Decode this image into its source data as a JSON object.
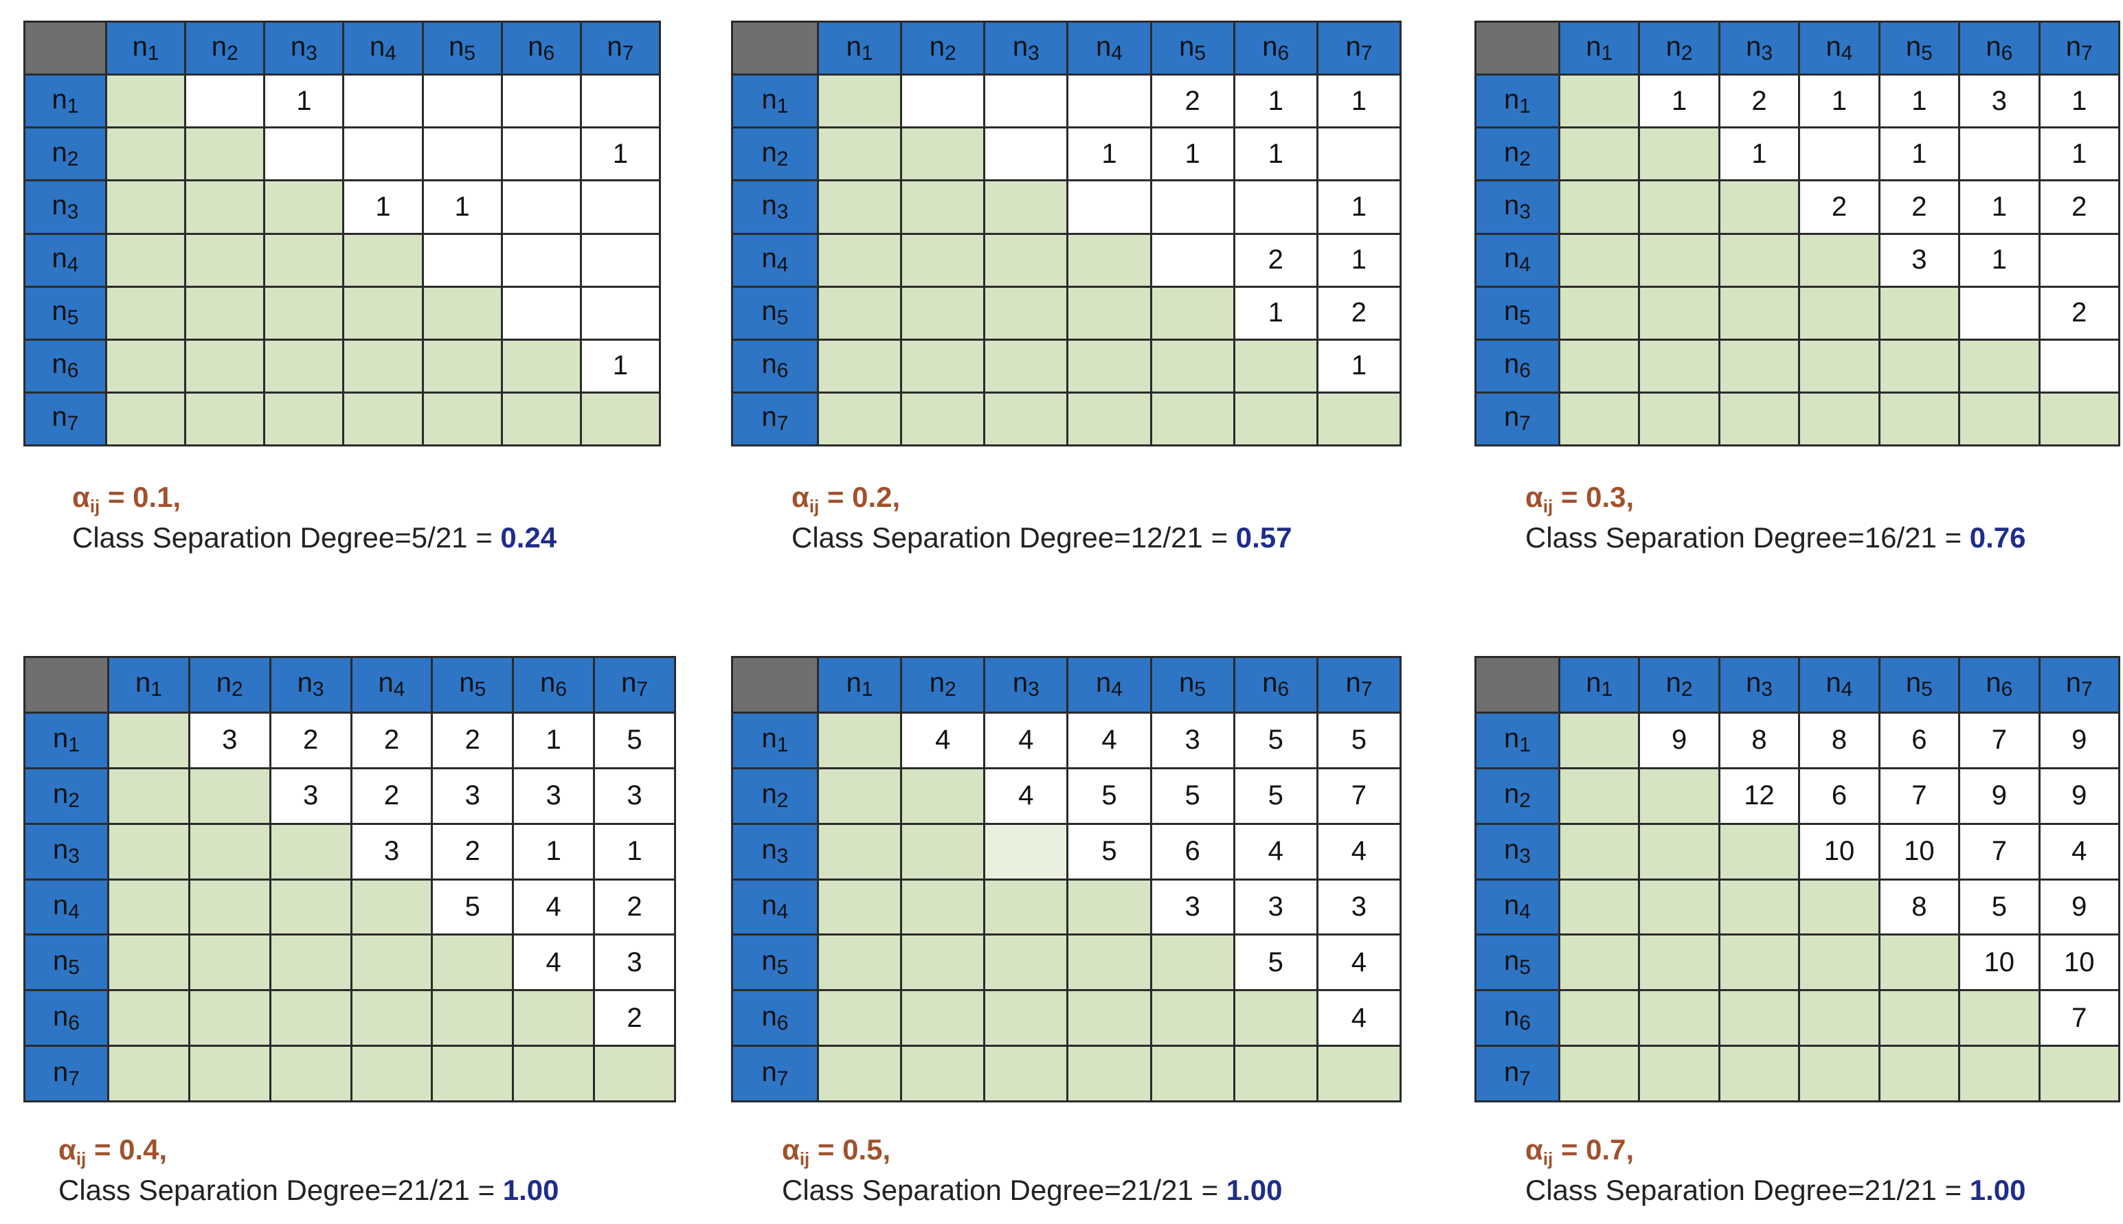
{
  "row_labels": [
    "n1",
    "n2",
    "n3",
    "n4",
    "n5",
    "n6",
    "n7"
  ],
  "header_base": "n",
  "header_subs": [
    "1",
    "2",
    "3",
    "4",
    "5",
    "6",
    "7"
  ],
  "caption_alpha_symbol": "α",
  "caption_alpha_sub": "ij",
  "caption_text_prefix": "Class Separation Degree=",
  "panels": [
    {
      "alpha": "= 0.1,",
      "csd_fraction": "5/21",
      "csd_value": "0.24",
      "matrix": [
        [
          "",
          "",
          "1",
          "",
          "",
          "",
          ""
        ],
        [
          "",
          "",
          "",
          "",
          "",
          "",
          "1"
        ],
        [
          "",
          "",
          "",
          "1",
          "1",
          "",
          ""
        ],
        [
          "",
          "",
          "",
          "",
          "",
          "",
          ""
        ],
        [
          "",
          "",
          "",
          "",
          "",
          "",
          ""
        ],
        [
          "",
          "",
          "",
          "",
          "",
          "",
          "1"
        ],
        [
          "",
          "",
          "",
          "",
          "",
          "",
          ""
        ]
      ]
    },
    {
      "alpha": "= 0.2,",
      "csd_fraction": "12/21",
      "csd_value": "0.57",
      "matrix": [
        [
          "",
          "",
          "",
          "",
          "2",
          "1",
          "1"
        ],
        [
          "",
          "",
          "",
          "1",
          "1",
          "1",
          ""
        ],
        [
          "",
          "",
          "",
          "",
          "",
          "",
          "1"
        ],
        [
          "",
          "",
          "",
          "",
          "",
          "2",
          "1"
        ],
        [
          "",
          "",
          "",
          "",
          "",
          "1",
          "2"
        ],
        [
          "",
          "",
          "",
          "",
          "",
          "",
          "1"
        ],
        [
          "",
          "",
          "",
          "",
          "",
          "",
          ""
        ]
      ]
    },
    {
      "alpha": "= 0.3,",
      "csd_fraction": "16/21",
      "csd_value": "0.76",
      "matrix": [
        [
          "",
          "1",
          "2",
          "1",
          "1",
          "3",
          "1"
        ],
        [
          "",
          "",
          "1",
          "",
          "1",
          "",
          "1"
        ],
        [
          "",
          "",
          "",
          "2",
          "2",
          "1",
          "2"
        ],
        [
          "",
          "",
          "",
          "",
          "3",
          "1",
          ""
        ],
        [
          "",
          "",
          "",
          "",
          "",
          "",
          "2"
        ],
        [
          "",
          "",
          "",
          "",
          "",
          "",
          ""
        ],
        [
          "",
          "",
          "",
          "",
          "",
          "",
          ""
        ]
      ]
    },
    {
      "alpha": "= 0.4,",
      "csd_fraction": "21/21",
      "csd_value": "1.00",
      "matrix": [
        [
          "",
          "3",
          "2",
          "2",
          "2",
          "1",
          "5"
        ],
        [
          "",
          "",
          "3",
          "2",
          "3",
          "3",
          "3"
        ],
        [
          "",
          "",
          "",
          "3",
          "2",
          "1",
          "1"
        ],
        [
          "",
          "",
          "",
          "",
          "5",
          "4",
          "2"
        ],
        [
          "",
          "",
          "",
          "",
          "",
          "4",
          "3"
        ],
        [
          "",
          "",
          "",
          "",
          "",
          "",
          "2"
        ],
        [
          "",
          "",
          "",
          "",
          "",
          "",
          ""
        ]
      ]
    },
    {
      "alpha": "= 0.5,",
      "csd_fraction": "21/21",
      "csd_value": "1.00",
      "matrix": [
        [
          "",
          "4",
          "4",
          "4",
          "3",
          "5",
          "5"
        ],
        [
          "",
          "",
          "4",
          "5",
          "5",
          "5",
          "7"
        ],
        [
          "",
          "",
          "",
          "5",
          "6",
          "4",
          "4"
        ],
        [
          "",
          "",
          "",
          "",
          "3",
          "3",
          "3"
        ],
        [
          "",
          "",
          "",
          "",
          "",
          "5",
          "4"
        ],
        [
          "",
          "",
          "",
          "",
          "",
          "",
          "4"
        ],
        [
          "",
          "",
          "",
          "",
          "",
          "",
          ""
        ]
      ]
    },
    {
      "alpha": "= 0.7,",
      "csd_fraction": "21/21",
      "csd_value": "1.00",
      "matrix": [
        [
          "",
          "9",
          "8",
          "8",
          "6",
          "7",
          "9"
        ],
        [
          "",
          "",
          "12",
          "6",
          "7",
          "9",
          "9"
        ],
        [
          "",
          "",
          "",
          "10",
          "10",
          "7",
          "4"
        ],
        [
          "",
          "",
          "",
          "",
          "8",
          "5",
          "9"
        ],
        [
          "",
          "",
          "",
          "",
          "",
          "10",
          "10"
        ],
        [
          "",
          "",
          "",
          "",
          "",
          "",
          "7"
        ],
        [
          "",
          "",
          "",
          "",
          "",
          "",
          ""
        ]
      ]
    }
  ]
}
